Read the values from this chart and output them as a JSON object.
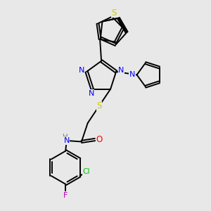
{
  "bg_color": "#e8e8e8",
  "bond_color": "#000000",
  "N_color": "#0000ff",
  "S_color": "#cccc00",
  "O_color": "#ff0000",
  "Cl_color": "#00bb00",
  "F_color": "#bb00bb",
  "H_color": "#808080",
  "font_size": 8.0,
  "lw": 1.4,
  "figsize": [
    3.0,
    3.0
  ],
  "dpi": 100,
  "xlim": [
    0,
    10
  ],
  "ylim": [
    0,
    10
  ]
}
